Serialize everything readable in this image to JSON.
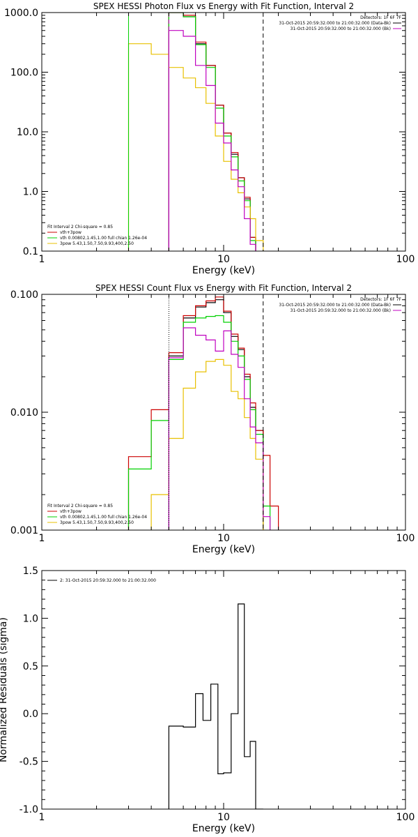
{
  "colors": {
    "data": "#000000",
    "total_fit": "#cc0000",
    "thermal": "#00d000",
    "power_law": "#e8c000",
    "bk": "#c000c0"
  },
  "chart_data": [
    {
      "type": "line",
      "id": "photon",
      "title": "SPEX HESSI Photon Flux vs Energy with Fit Function, Interval 2",
      "xlabel": "Energy (keV)",
      "ylabel": "",
      "xscale": "log",
      "yscale": "log",
      "xlim": [
        1,
        100
      ],
      "ylim": [
        0.1,
        1000
      ],
      "xticks": [
        {
          "v": 1,
          "label": "1"
        },
        {
          "v": 10,
          "label": "10"
        },
        {
          "v": 100,
          "label": "100"
        }
      ],
      "yticks": [
        {
          "v": 0.1,
          "label": "0.1"
        },
        {
          "v": 1,
          "label": "1.0"
        },
        {
          "v": 10,
          "label": "10.0"
        },
        {
          "v": 100,
          "label": "100.0"
        },
        {
          "v": 1000,
          "label": "1000.0"
        }
      ],
      "edges": [
        3,
        4,
        5,
        6,
        7,
        8,
        9,
        10,
        11,
        12,
        13,
        14,
        15,
        16.5,
        18
      ],
      "series": [
        {
          "key": "data",
          "color": "#000000",
          "values": [
            null,
            null,
            1050,
            850,
            300,
            130,
            28,
            9.5,
            4.2,
            1.7,
            0.75,
            0.17,
            null,
            null
          ]
        },
        {
          "key": "total",
          "color": "#cc0000",
          "values": [
            null,
            null,
            1000,
            900,
            320,
            130,
            28,
            9.5,
            4.5,
            1.7,
            0.8,
            0.17,
            null,
            null
          ]
        },
        {
          "key": "thermal",
          "color": "#00d000",
          "values": [
            null,
            null,
            1000,
            850,
            290,
            120,
            25,
            8.5,
            3.8,
            1.5,
            0.7,
            0.15,
            null,
            null
          ]
        },
        {
          "key": "powerlaw",
          "color": "#e8c000",
          "values": [
            300,
            200,
            120,
            80,
            55,
            30,
            8.5,
            3.2,
            1.6,
            0.95,
            0.55,
            0.35,
            0.15,
            null
          ]
        },
        {
          "key": "bk",
          "color": "#c000c0",
          "values": [
            null,
            null,
            500,
            400,
            130,
            60,
            14,
            6.5,
            2.3,
            1.2,
            0.35,
            0.13,
            null,
            null
          ]
        }
      ],
      "vlines": [
        {
          "x": 3,
          "color": "#00d000",
          "style": "solid"
        },
        {
          "x": 5,
          "color": "#c000c0",
          "style": "dash"
        },
        {
          "x": 16.5,
          "color": "#000000",
          "style": "dash"
        }
      ],
      "legend_left": [
        {
          "text": "Fit Interval 2   Chi-square = 0.85",
          "color": ""
        },
        {
          "text": "vth+3pow",
          "color": "#cc0000"
        },
        {
          "text": "vth 0.00802,1.45,1.00   full chian 1.26e-04",
          "color": "#00d000"
        },
        {
          "text": "3pow 5.43,1.50,7.50,9.93,400,2.50",
          "color": "#e8c000"
        }
      ],
      "legend_right": [
        {
          "text": "Detectors: 1F 6F 7F",
          "color": ""
        },
        {
          "text": "31-Oct-2015 20:59:32.000 to 21:00:32.000 (Data-Bk)",
          "color": "#000000"
        },
        {
          "text": "31-Oct-2015 20:59:32.000 to 21:00:32.000 (Bk)",
          "color": "#c000c0"
        }
      ]
    },
    {
      "type": "line",
      "id": "count",
      "title": "SPEX HESSI Count Flux vs Energy with Fit Function, Interval 2",
      "xlabel": "Energy (keV)",
      "ylabel": "",
      "xscale": "log",
      "yscale": "log",
      "xlim": [
        1,
        100
      ],
      "ylim": [
        0.001,
        0.1
      ],
      "xticks": [
        {
          "v": 1,
          "label": "1"
        },
        {
          "v": 10,
          "label": "10"
        },
        {
          "v": 100,
          "label": "100"
        }
      ],
      "yticks": [
        {
          "v": 0.001,
          "label": "0.001"
        },
        {
          "v": 0.01,
          "label": "0.010"
        },
        {
          "v": 0.1,
          "label": "0.100"
        }
      ],
      "edges": [
        3,
        4,
        5,
        6,
        7,
        8,
        9,
        10,
        11,
        12,
        13,
        14,
        15,
        16.5,
        18,
        20
      ],
      "series": [
        {
          "key": "data",
          "color": "#000000",
          "values": [
            null,
            null,
            0.03,
            0.063,
            0.078,
            0.085,
            0.09,
            0.07,
            0.044,
            0.034,
            0.02,
            0.011,
            0.007,
            null,
            null
          ]
        },
        {
          "key": "total",
          "color": "#cc0000",
          "values": [
            0.0042,
            0.0105,
            0.032,
            0.066,
            0.08,
            0.088,
            0.095,
            0.072,
            0.046,
            0.035,
            0.021,
            0.012,
            0.007,
            0.0043,
            0.0016
          ]
        },
        {
          "key": "thermal",
          "color": "#00d000",
          "values": [
            0.0033,
            0.0085,
            0.028,
            0.058,
            0.063,
            0.065,
            0.066,
            0.058,
            0.04,
            0.03,
            0.019,
            0.0105,
            0.0065,
            0.0016,
            null
          ]
        },
        {
          "key": "powerlaw",
          "color": "#e8c000",
          "values": [
            null,
            0.002,
            0.006,
            0.016,
            0.022,
            0.027,
            0.028,
            0.025,
            0.015,
            0.013,
            0.009,
            0.006,
            0.004,
            null,
            null
          ]
        },
        {
          "key": "bk",
          "color": "#c000c0",
          "values": [
            null,
            null,
            0.029,
            0.052,
            0.045,
            0.041,
            0.033,
            0.049,
            0.031,
            0.024,
            0.013,
            0.0075,
            0.0055,
            0.0013,
            null
          ]
        }
      ],
      "vlines": [
        {
          "x": 5,
          "color": "#000000",
          "style": "dot"
        },
        {
          "x": 16.5,
          "color": "#000000",
          "style": "dash"
        }
      ],
      "legend_left": [
        {
          "text": "Fit Interval 2   Chi-square = 0.85",
          "color": ""
        },
        {
          "text": "vth+3pow",
          "color": "#cc0000"
        },
        {
          "text": "vth 0.00802,1.45,1.00   full chian 1.26e-04",
          "color": "#00d000"
        },
        {
          "text": "3pow 5.43,1.50,7.50,9.93,400,2.50",
          "color": "#e8c000"
        }
      ],
      "legend_right": [
        {
          "text": "Detectors: 1F 6F 7F",
          "color": ""
        },
        {
          "text": "31-Oct-2015 20:59:32.000 to 21:00:32.000 (Data-Bk)",
          "color": "#000000"
        },
        {
          "text": "31-Oct-2015 20:59:32.000 to 21:00:32.000 (Bk)",
          "color": "#c000c0"
        }
      ]
    },
    {
      "type": "line",
      "id": "resid",
      "title": "",
      "xlabel": "Energy (keV)",
      "ylabel": "Normalized Residuals (sigma)",
      "xscale": "log",
      "yscale": "linear",
      "xlim": [
        1,
        100
      ],
      "ylim": [
        -1.0,
        1.5
      ],
      "xticks": [
        {
          "v": 1,
          "label": "1"
        },
        {
          "v": 10,
          "label": "10"
        },
        {
          "v": 100,
          "label": "100"
        }
      ],
      "yticks": [
        {
          "v": -1.0,
          "label": "-1.0"
        },
        {
          "v": -0.5,
          "label": "-0.5"
        },
        {
          "v": 0.0,
          "label": "0.0"
        },
        {
          "v": 0.5,
          "label": "0.5"
        },
        {
          "v": 1.0,
          "label": "1.0"
        },
        {
          "v": 1.5,
          "label": "1.5"
        }
      ],
      "edges": [
        5,
        6,
        7,
        7.7,
        8.5,
        9.3,
        10,
        11,
        12,
        13,
        14,
        15,
        16.5
      ],
      "series": [
        {
          "key": "resid",
          "color": "#000000",
          "values": [
            -0.13,
            -0.14,
            0.21,
            -0.07,
            0.31,
            -0.63,
            -0.62,
            0.0,
            1.15,
            -0.45,
            -0.29,
            -1.0
          ]
        }
      ],
      "vlines": [],
      "legend_left": [
        {
          "text": "2: 31-Oct-2015 20:59:32.000 to 21:00:32.000",
          "color": "#000000"
        }
      ],
      "legend_right": []
    }
  ]
}
